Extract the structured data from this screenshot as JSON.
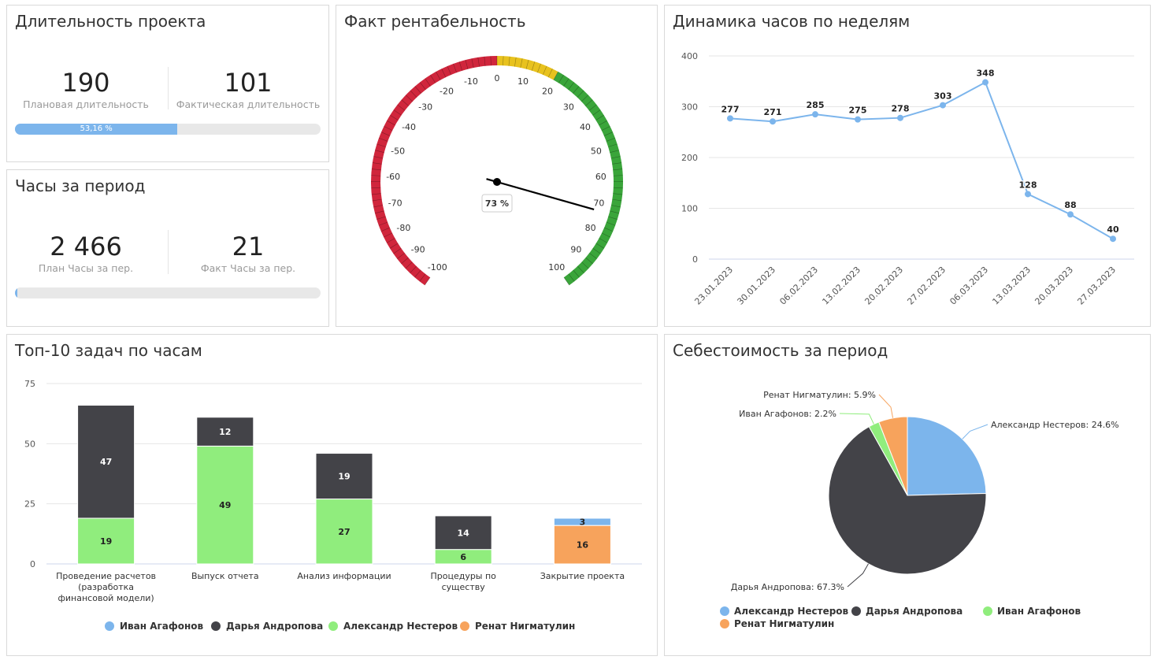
{
  "duration": {
    "title": "Длительность проекта",
    "plan_value": "190",
    "plan_label": "Плановая длительность",
    "fact_value": "101",
    "fact_label": "Фактическая длительность",
    "progress_fraction": 0.5316,
    "progress_label": "53,16 %"
  },
  "hours": {
    "title": "Часы за период",
    "plan_value": "2 466",
    "plan_label": "План Часы за пер.",
    "fact_value": "21",
    "fact_label": "Факт Часы за пер.",
    "progress_fraction": 0.0085,
    "progress_label": ""
  },
  "gauge": {
    "title": "Факт рентабельность",
    "value": 73,
    "value_label": "73 %",
    "min": -100,
    "max": 100,
    "ticks": [
      -100,
      -90,
      -80,
      -70,
      -60,
      -50,
      -40,
      -30,
      -20,
      -10,
      0,
      10,
      20,
      30,
      40,
      50,
      60,
      70,
      80,
      90,
      100
    ],
    "bands": [
      {
        "from": -100,
        "to": 0,
        "color": "#d0263c"
      },
      {
        "from": 0,
        "to": 20,
        "color": "#e8c21e"
      },
      {
        "from": 20,
        "to": 100,
        "color": "#3aa53a"
      }
    ]
  },
  "weekly": {
    "title": "Динамика часов по неделям"
  },
  "top10": {
    "title": "Топ-10 задач по часам"
  },
  "cost": {
    "title": "Себестоимость за период"
  },
  "chart_data": [
    {
      "type": "line",
      "x": [
        "23.01.2023",
        "30.01.2023",
        "06.02.2023",
        "13.02.2023",
        "20.02.2023",
        "27.02.2023",
        "06.03.2023",
        "13.03.2023",
        "20.03.2023",
        "27.03.2023"
      ],
      "series": [
        {
          "values": [
            277,
            271,
            285,
            275,
            278,
            303,
            348,
            128,
            88,
            40
          ]
        }
      ],
      "ylim": [
        0,
        400
      ],
      "yticks": [
        0,
        100,
        200,
        300,
        400
      ],
      "data_labels": true,
      "grid": true,
      "color": "#7cb5ec"
    },
    {
      "type": "bar",
      "stacked": true,
      "categories": [
        "Проведение расчетов (разработка финансовой модели)",
        "Выпуск отчета",
        "Анализ информации",
        "Процедуры по существу",
        "Закрытие проекта"
      ],
      "series": [
        {
          "name": "Иван Агафонов",
          "color": "#7cb5ec",
          "values": [
            0,
            0,
            0,
            0,
            3
          ]
        },
        {
          "name": "Дарья Андропова",
          "color": "#434348",
          "values": [
            47,
            12,
            19,
            14,
            0
          ]
        },
        {
          "name": "Александр Нестеров",
          "color": "#90ed7d",
          "values": [
            19,
            49,
            27,
            6,
            0
          ]
        },
        {
          "name": "Ренат Нигматулин",
          "color": "#f7a35c",
          "values": [
            0,
            0,
            0,
            0,
            16
          ]
        }
      ],
      "ylim": [
        0,
        75
      ],
      "yticks": [
        0,
        25,
        50,
        75
      ],
      "legend": "bottom"
    },
    {
      "type": "pie",
      "slices": [
        {
          "name": "Александр Нестеров",
          "value": 24.6,
          "label": "Александр Нестеров: 24.6%",
          "color": "#7cb5ec"
        },
        {
          "name": "Дарья Андропова",
          "value": 67.3,
          "label": "Дарья Андропова: 67.3%",
          "color": "#434348"
        },
        {
          "name": "Иван Агафонов",
          "value": 2.2,
          "label": "Иван Агафонов: 2.2%",
          "color": "#90ed7d"
        },
        {
          "name": "Ренат Нигматулин",
          "value": 5.9,
          "label": "Ренат Нигматулин: 5.9%",
          "color": "#f7a35c"
        }
      ],
      "legend": "bottom"
    }
  ]
}
